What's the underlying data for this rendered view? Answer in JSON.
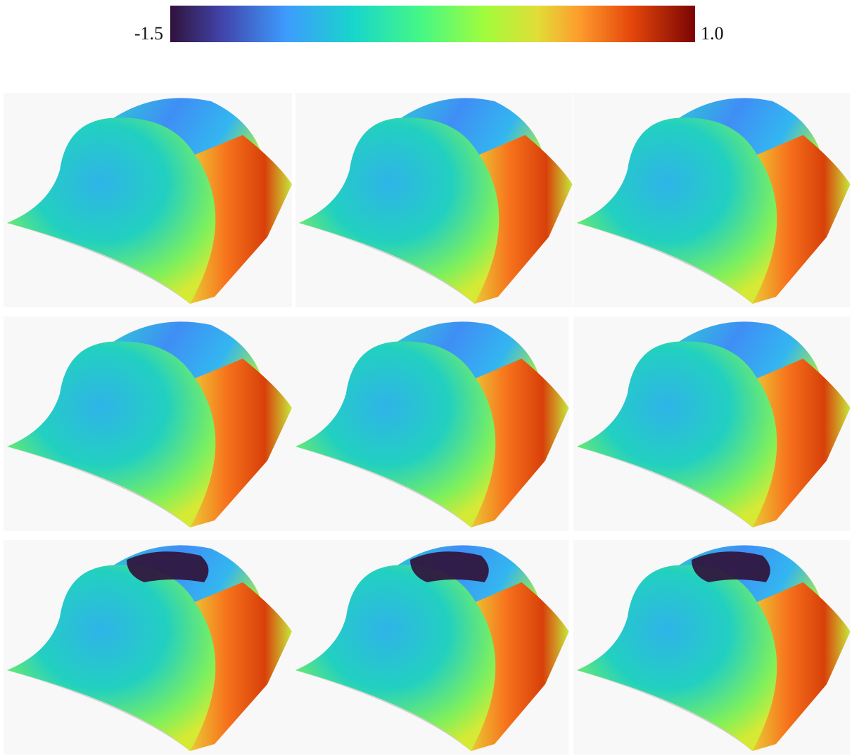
{
  "colorbar": {
    "min_label": "-1.5",
    "max_label": "1.0"
  }
}
